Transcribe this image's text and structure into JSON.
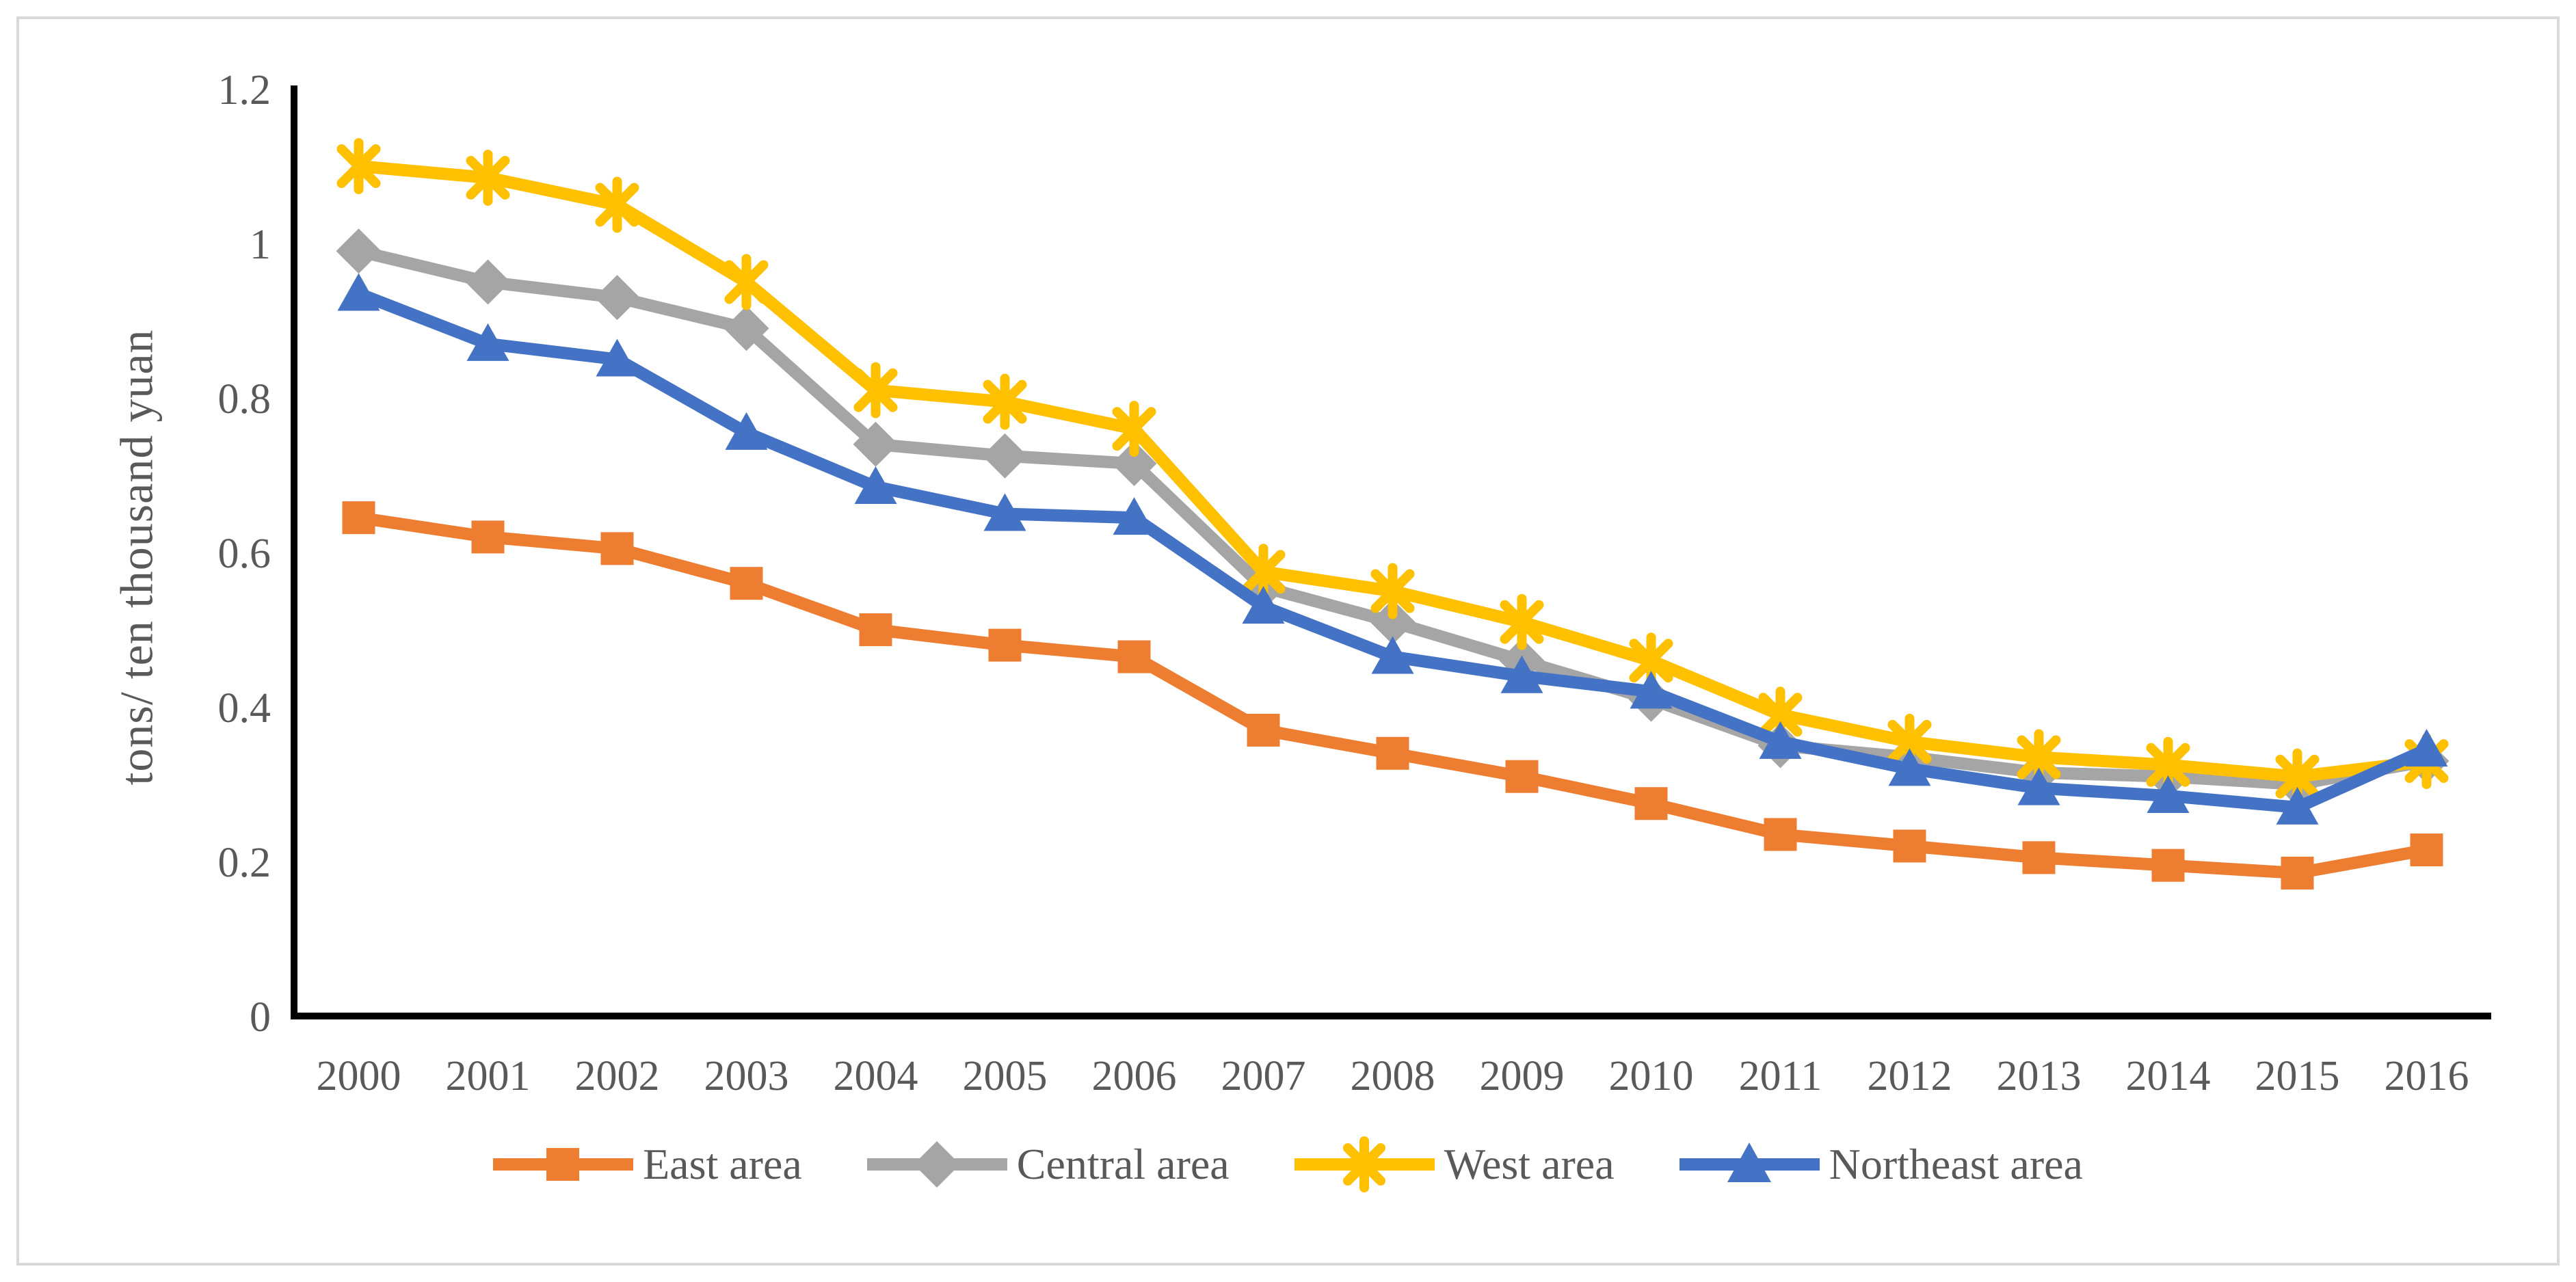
{
  "chart_data": {
    "type": "line",
    "title": "",
    "xlabel": "",
    "ylabel": "tons/ ten thousand yuan",
    "ylim": [
      0,
      1.2
    ],
    "ytick_step": 0.2,
    "ytick_labels": [
      "0",
      "0.2",
      "0.4",
      "0.6",
      "0.8",
      "1",
      "1.2"
    ],
    "grid": false,
    "legend_position": "bottom",
    "categories": [
      "2000",
      "2001",
      "2002",
      "2003",
      "2004",
      "2005",
      "2006",
      "2007",
      "2008",
      "2009",
      "2010",
      "2011",
      "2012",
      "2013",
      "2014",
      "2015",
      "2016"
    ],
    "series": [
      {
        "name": "East area",
        "color": "#ED7D31",
        "marker": "square",
        "values": [
          0.645,
          0.62,
          0.605,
          0.56,
          0.5,
          0.48,
          0.465,
          0.37,
          0.34,
          0.31,
          0.275,
          0.235,
          0.22,
          0.205,
          0.195,
          0.185,
          0.215
        ]
      },
      {
        "name": "Central area",
        "color": "#A5A5A5",
        "marker": "diamond",
        "values": [
          0.99,
          0.95,
          0.93,
          0.89,
          0.74,
          0.725,
          0.715,
          0.555,
          0.51,
          0.46,
          0.41,
          0.35,
          0.335,
          0.315,
          0.31,
          0.3,
          0.33
        ]
      },
      {
        "name": "West area",
        "color": "#FFC000",
        "marker": "asterisk",
        "values": [
          1.1,
          1.085,
          1.05,
          0.95,
          0.81,
          0.795,
          0.76,
          0.575,
          0.55,
          0.51,
          0.46,
          0.39,
          0.355,
          0.335,
          0.325,
          0.31,
          0.33
        ]
      },
      {
        "name": "Northeast area",
        "color": "#4472C4",
        "marker": "triangle",
        "values": [
          0.935,
          0.87,
          0.85,
          0.755,
          0.685,
          0.65,
          0.645,
          0.53,
          0.465,
          0.44,
          0.42,
          0.355,
          0.32,
          0.295,
          0.285,
          0.27,
          0.345
        ]
      }
    ]
  },
  "colors": {
    "axis": "#000000",
    "text": "#595959",
    "frame": "#D9D9D9",
    "background": "#FFFFFF"
  }
}
